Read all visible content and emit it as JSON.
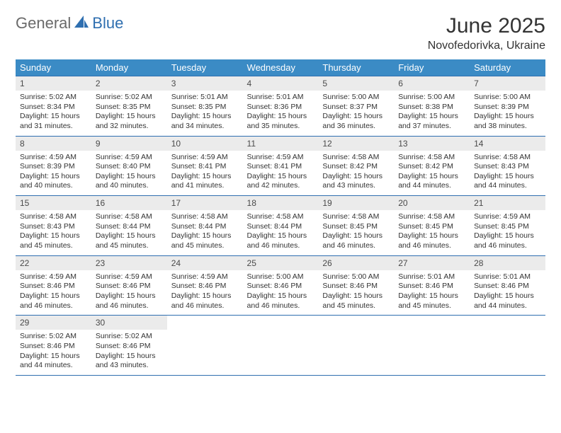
{
  "brand": {
    "part1": "General",
    "part2": "Blue"
  },
  "title": "June 2025",
  "location": "Novofedorivka, Ukraine",
  "colors": {
    "header_bg": "#3b8bc5",
    "header_text": "#ffffff",
    "rule": "#2f6fb0",
    "daynum_bg": "#ebebeb",
    "text": "#333333",
    "logo_gray": "#6a6a6a",
    "logo_blue": "#2f6fb0"
  },
  "dow": [
    "Sunday",
    "Monday",
    "Tuesday",
    "Wednesday",
    "Thursday",
    "Friday",
    "Saturday"
  ],
  "weeks": [
    [
      {
        "n": "1",
        "sr": "5:02 AM",
        "ss": "8:34 PM",
        "dl": "15 hours and 31 minutes."
      },
      {
        "n": "2",
        "sr": "5:02 AM",
        "ss": "8:35 PM",
        "dl": "15 hours and 32 minutes."
      },
      {
        "n": "3",
        "sr": "5:01 AM",
        "ss": "8:35 PM",
        "dl": "15 hours and 34 minutes."
      },
      {
        "n": "4",
        "sr": "5:01 AM",
        "ss": "8:36 PM",
        "dl": "15 hours and 35 minutes."
      },
      {
        "n": "5",
        "sr": "5:00 AM",
        "ss": "8:37 PM",
        "dl": "15 hours and 36 minutes."
      },
      {
        "n": "6",
        "sr": "5:00 AM",
        "ss": "8:38 PM",
        "dl": "15 hours and 37 minutes."
      },
      {
        "n": "7",
        "sr": "5:00 AM",
        "ss": "8:39 PM",
        "dl": "15 hours and 38 minutes."
      }
    ],
    [
      {
        "n": "8",
        "sr": "4:59 AM",
        "ss": "8:39 PM",
        "dl": "15 hours and 40 minutes."
      },
      {
        "n": "9",
        "sr": "4:59 AM",
        "ss": "8:40 PM",
        "dl": "15 hours and 40 minutes."
      },
      {
        "n": "10",
        "sr": "4:59 AM",
        "ss": "8:41 PM",
        "dl": "15 hours and 41 minutes."
      },
      {
        "n": "11",
        "sr": "4:59 AM",
        "ss": "8:41 PM",
        "dl": "15 hours and 42 minutes."
      },
      {
        "n": "12",
        "sr": "4:58 AM",
        "ss": "8:42 PM",
        "dl": "15 hours and 43 minutes."
      },
      {
        "n": "13",
        "sr": "4:58 AM",
        "ss": "8:42 PM",
        "dl": "15 hours and 44 minutes."
      },
      {
        "n": "14",
        "sr": "4:58 AM",
        "ss": "8:43 PM",
        "dl": "15 hours and 44 minutes."
      }
    ],
    [
      {
        "n": "15",
        "sr": "4:58 AM",
        "ss": "8:43 PM",
        "dl": "15 hours and 45 minutes."
      },
      {
        "n": "16",
        "sr": "4:58 AM",
        "ss": "8:44 PM",
        "dl": "15 hours and 45 minutes."
      },
      {
        "n": "17",
        "sr": "4:58 AM",
        "ss": "8:44 PM",
        "dl": "15 hours and 45 minutes."
      },
      {
        "n": "18",
        "sr": "4:58 AM",
        "ss": "8:44 PM",
        "dl": "15 hours and 46 minutes."
      },
      {
        "n": "19",
        "sr": "4:58 AM",
        "ss": "8:45 PM",
        "dl": "15 hours and 46 minutes."
      },
      {
        "n": "20",
        "sr": "4:58 AM",
        "ss": "8:45 PM",
        "dl": "15 hours and 46 minutes."
      },
      {
        "n": "21",
        "sr": "4:59 AM",
        "ss": "8:45 PM",
        "dl": "15 hours and 46 minutes."
      }
    ],
    [
      {
        "n": "22",
        "sr": "4:59 AM",
        "ss": "8:46 PM",
        "dl": "15 hours and 46 minutes."
      },
      {
        "n": "23",
        "sr": "4:59 AM",
        "ss": "8:46 PM",
        "dl": "15 hours and 46 minutes."
      },
      {
        "n": "24",
        "sr": "4:59 AM",
        "ss": "8:46 PM",
        "dl": "15 hours and 46 minutes."
      },
      {
        "n": "25",
        "sr": "5:00 AM",
        "ss": "8:46 PM",
        "dl": "15 hours and 46 minutes."
      },
      {
        "n": "26",
        "sr": "5:00 AM",
        "ss": "8:46 PM",
        "dl": "15 hours and 45 minutes."
      },
      {
        "n": "27",
        "sr": "5:01 AM",
        "ss": "8:46 PM",
        "dl": "15 hours and 45 minutes."
      },
      {
        "n": "28",
        "sr": "5:01 AM",
        "ss": "8:46 PM",
        "dl": "15 hours and 44 minutes."
      }
    ],
    [
      {
        "n": "29",
        "sr": "5:02 AM",
        "ss": "8:46 PM",
        "dl": "15 hours and 44 minutes."
      },
      {
        "n": "30",
        "sr": "5:02 AM",
        "ss": "8:46 PM",
        "dl": "15 hours and 43 minutes."
      },
      {
        "empty": true
      },
      {
        "empty": true
      },
      {
        "empty": true
      },
      {
        "empty": true
      },
      {
        "empty": true
      }
    ]
  ],
  "labels": {
    "sunrise": "Sunrise:",
    "sunset": "Sunset:",
    "daylight": "Daylight:"
  }
}
